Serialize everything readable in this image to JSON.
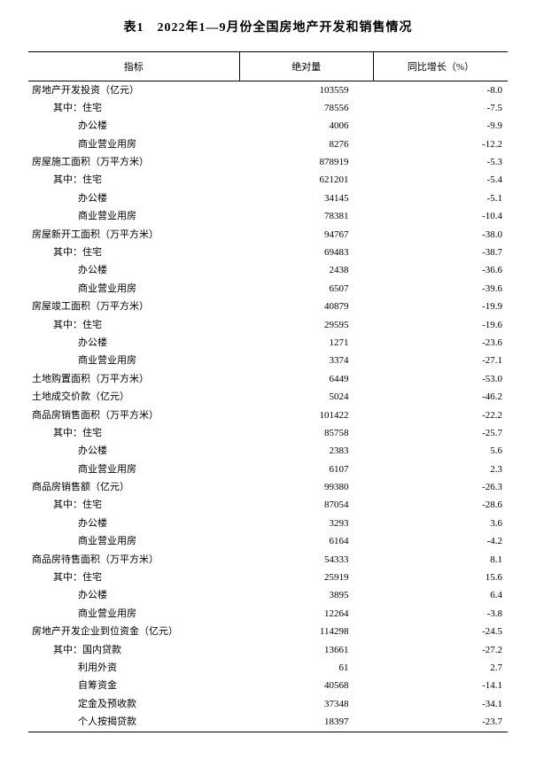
{
  "title": "表1　2022年1—9月份全国房地产开发和销售情况",
  "headers": {
    "indicator": "指标",
    "absolute": "绝对量",
    "growth": "同比增长（%）"
  },
  "rows": [
    {
      "label": "房地产开发投资（亿元）",
      "indent": 0,
      "value": "103559",
      "growth": "-8.0"
    },
    {
      "label": "其中：住宅",
      "indent": 1,
      "value": "78556",
      "growth": "-7.5"
    },
    {
      "label": "办公楼",
      "indent": 2,
      "value": "4006",
      "growth": "-9.9"
    },
    {
      "label": "商业营业用房",
      "indent": 2,
      "value": "8276",
      "growth": "-12.2"
    },
    {
      "label": "房屋施工面积（万平方米）",
      "indent": 0,
      "value": "878919",
      "growth": "-5.3"
    },
    {
      "label": "其中：住宅",
      "indent": 1,
      "value": "621201",
      "growth": "-5.4"
    },
    {
      "label": "办公楼",
      "indent": 2,
      "value": "34145",
      "growth": "-5.1"
    },
    {
      "label": "商业营业用房",
      "indent": 2,
      "value": "78381",
      "growth": "-10.4"
    },
    {
      "label": "房屋新开工面积（万平方米）",
      "indent": 0,
      "value": "94767",
      "growth": "-38.0"
    },
    {
      "label": "其中：住宅",
      "indent": 1,
      "value": "69483",
      "growth": "-38.7"
    },
    {
      "label": "办公楼",
      "indent": 2,
      "value": "2438",
      "growth": "-36.6"
    },
    {
      "label": "商业营业用房",
      "indent": 2,
      "value": "6507",
      "growth": "-39.6"
    },
    {
      "label": "房屋竣工面积（万平方米）",
      "indent": 0,
      "value": "40879",
      "growth": "-19.9"
    },
    {
      "label": "其中：住宅",
      "indent": 1,
      "value": "29595",
      "growth": "-19.6"
    },
    {
      "label": "办公楼",
      "indent": 2,
      "value": "1271",
      "growth": "-23.6"
    },
    {
      "label": "商业营业用房",
      "indent": 2,
      "value": "3374",
      "growth": "-27.1"
    },
    {
      "label": "土地购置面积（万平方米）",
      "indent": 0,
      "value": "6449",
      "growth": "-53.0"
    },
    {
      "label": "土地成交价款（亿元）",
      "indent": 0,
      "value": "5024",
      "growth": "-46.2"
    },
    {
      "label": "商品房销售面积（万平方米）",
      "indent": 0,
      "value": "101422",
      "growth": "-22.2"
    },
    {
      "label": "其中：住宅",
      "indent": 1,
      "value": "85758",
      "growth": "-25.7"
    },
    {
      "label": "办公楼",
      "indent": 2,
      "value": "2383",
      "growth": "5.6"
    },
    {
      "label": "商业营业用房",
      "indent": 2,
      "value": "6107",
      "growth": "2.3"
    },
    {
      "label": "商品房销售额（亿元）",
      "indent": 0,
      "value": "99380",
      "growth": "-26.3"
    },
    {
      "label": "其中：住宅",
      "indent": 1,
      "value": "87054",
      "growth": "-28.6"
    },
    {
      "label": "办公楼",
      "indent": 2,
      "value": "3293",
      "growth": "3.6"
    },
    {
      "label": "商业营业用房",
      "indent": 2,
      "value": "6164",
      "growth": "-4.2"
    },
    {
      "label": "商品房待售面积（万平方米）",
      "indent": 0,
      "value": "54333",
      "growth": "8.1"
    },
    {
      "label": "其中：住宅",
      "indent": 1,
      "value": "25919",
      "growth": "15.6"
    },
    {
      "label": "办公楼",
      "indent": 2,
      "value": "3895",
      "growth": "6.4"
    },
    {
      "label": "商业营业用房",
      "indent": 2,
      "value": "12264",
      "growth": "-3.8"
    },
    {
      "label": "房地产开发企业到位资金（亿元）",
      "indent": 0,
      "value": "114298",
      "growth": "-24.5"
    },
    {
      "label": "其中：国内贷款",
      "indent": 1,
      "value": "13661",
      "growth": "-27.2"
    },
    {
      "label": "利用外资",
      "indent": 2,
      "value": "61",
      "growth": "2.7"
    },
    {
      "label": "自筹资金",
      "indent": 2,
      "value": "40568",
      "growth": "-14.1"
    },
    {
      "label": "定金及预收款",
      "indent": 2,
      "value": "37348",
      "growth": "-34.1"
    },
    {
      "label": "个人按揭贷款",
      "indent": 2,
      "value": "18397",
      "growth": "-23.7"
    }
  ],
  "style": {
    "background_color": "#ffffff",
    "text_color": "#000000",
    "rule_color": "#000000",
    "title_fontsize": 14,
    "body_fontsize": 11,
    "col_widths_pct": [
      44,
      28,
      28
    ]
  }
}
